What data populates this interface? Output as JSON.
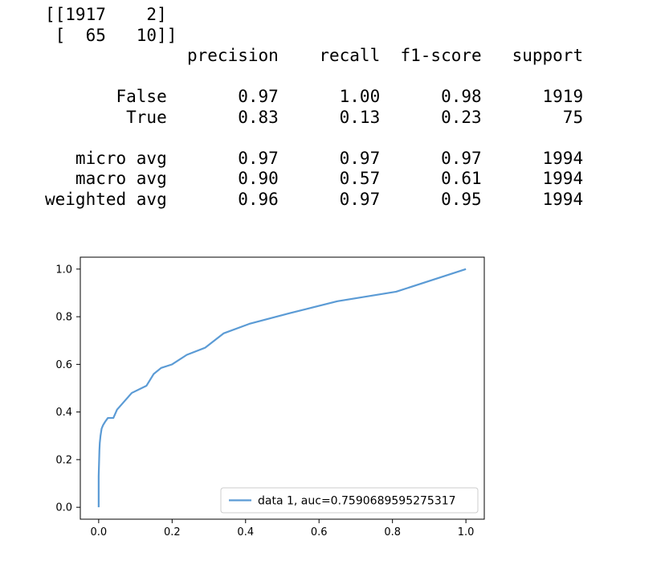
{
  "output_text": {
    "confusion_matrix": [
      "[[1917    2]",
      " [  65   10]]"
    ],
    "report_header": "              precision    recall  f1-score   support",
    "report_rows": [
      "       False       0.97      1.00      0.98      1919",
      "        True       0.83      0.13      0.23        75",
      "   micro avg       0.97      0.97      0.97      1994",
      "   macro avg       0.90      0.57      0.61      1994",
      "weighted avg       0.96      0.97      0.95      1994"
    ]
  },
  "chart_data": {
    "type": "line",
    "title": "",
    "xlabel": "",
    "ylabel": "",
    "xlim": [
      -0.05,
      1.05
    ],
    "ylim": [
      -0.05,
      1.05
    ],
    "x_ticks": [
      "0.0",
      "0.2",
      "0.4",
      "0.6",
      "0.8",
      "1.0"
    ],
    "y_ticks": [
      "0.0",
      "0.2",
      "0.4",
      "0.6",
      "0.8",
      "1.0"
    ],
    "grid": false,
    "legend_position": "lower-right",
    "series": [
      {
        "name": "data 1, auc=0.7590689595275317",
        "color": "#5b9bd5",
        "x": [
          0.0,
          0.0,
          0.002,
          0.003,
          0.005,
          0.008,
          0.012,
          0.018,
          0.025,
          0.04,
          0.05,
          0.09,
          0.13,
          0.15,
          0.17,
          0.2,
          0.24,
          0.29,
          0.34,
          0.41,
          0.52,
          0.65,
          0.81,
          1.0
        ],
        "y": [
          0.0,
          0.13,
          0.24,
          0.27,
          0.3,
          0.33,
          0.345,
          0.36,
          0.375,
          0.375,
          0.41,
          0.48,
          0.51,
          0.56,
          0.585,
          0.6,
          0.64,
          0.67,
          0.73,
          0.77,
          0.815,
          0.865,
          0.905,
          1.0
        ]
      }
    ]
  }
}
